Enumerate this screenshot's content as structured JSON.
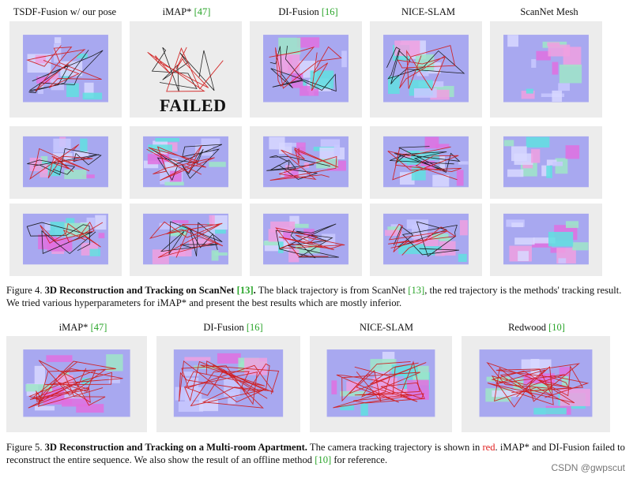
{
  "fig4": {
    "columns": [
      {
        "label": "TSDF-Fusion w/ our pose",
        "cite": ""
      },
      {
        "label": "iMAP* ",
        "cite": "[47]"
      },
      {
        "label": "DI-Fusion ",
        "cite": "[16]"
      },
      {
        "label": "NICE-SLAM",
        "cite": ""
      },
      {
        "label": "ScanNet Mesh",
        "cite": ""
      }
    ],
    "failed_label": "FAILED",
    "caption": {
      "prefix": "Figure 4. ",
      "bold": "3D Reconstruction and Tracking on ScanNet ",
      "bold_cite": "[13]",
      "bold_end": ".",
      "text1": " The black trajectory is from ScanNet ",
      "cite": "[13]",
      "text2": ", the red trajectory is the methods' tracking result. We tried various hyperparameters for iMAP* and present the best results which are mostly inferior."
    }
  },
  "fig5": {
    "columns": [
      {
        "label": "iMAP* ",
        "cite": "[47]"
      },
      {
        "label": "DI-Fusion ",
        "cite": "[16]"
      },
      {
        "label": "NICE-SLAM",
        "cite": ""
      },
      {
        "label": "Redwood ",
        "cite": "[10]"
      }
    ],
    "caption": {
      "prefix": "Figure 5. ",
      "bold": "3D Reconstruction and Tracking on a Multi-room Apartment.",
      "text1": " The camera tracking trajectory is shown in ",
      "red_word": "red",
      "text2": ". iMAP* and DI-Fusion failed to reconstruct the entire sequence. We also show the result of an offline method ",
      "cite": "[10]",
      "text3": " for reference."
    }
  },
  "watermark": "CSDN @gwpscut",
  "colors": {
    "citation": "#2aa52a",
    "trajectory_red": "#d01818",
    "trajectory_black": "#111111",
    "mesh_violet": "#a8a8f0",
    "mesh_magenta": "#e070e0",
    "mesh_cyan": "#60e0e0",
    "panel_bg": "#ececec"
  }
}
